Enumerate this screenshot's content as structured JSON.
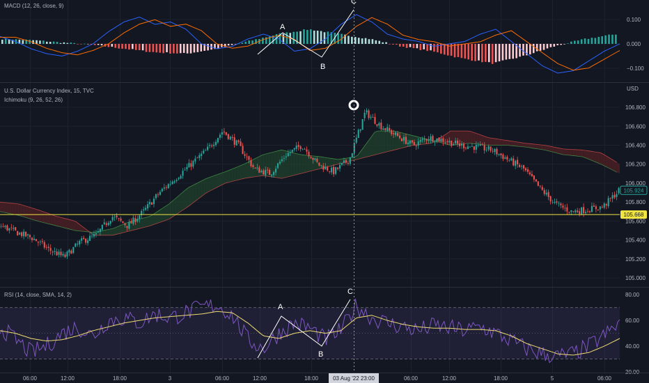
{
  "panes": {
    "macd": {
      "label": "MACD (12, 26, close, 9)"
    },
    "price": {
      "symbol_label": "U.S. Dollar Currency Index, 15, TVC",
      "indicator_label": "Ichimoku (9, 26, 52, 26)",
      "currency": "USD"
    },
    "rsi": {
      "label": "RSI (14, close, SMA, 14, 2)"
    }
  },
  "badges": {
    "last_price": "105.924",
    "hline_price": "105.668"
  },
  "crosshair_time": "03 Aug '22   23:00",
  "colors": {
    "bg": "#131722",
    "up": "#26a69a",
    "down": "#ef5350",
    "macd_line": "#2962ff",
    "signal_line": "#ff6d00",
    "rsi_line": "#7e57c2",
    "rsi_ma": "#f0dd73",
    "hline": "#f0e442",
    "cloud_bull": "#1f3d2c",
    "cloud_bear": "#4a1e24",
    "last_badge": "#26a69a",
    "hline_badge": "#f0e442"
  },
  "chart_data": [
    {
      "type": "bar",
      "title": "MACD (12, 26, close, 9)",
      "y_ticks": [
        "0.100",
        "0.000",
        "−0.100"
      ],
      "points": [
        "A",
        "B",
        "C"
      ],
      "histogram_sample": [
        0.02,
        0.015,
        0.005,
        -0.005,
        -0.02,
        -0.035,
        -0.04,
        -0.02,
        0.01,
        0.04,
        0.06,
        0.04,
        0.02,
        -0.01,
        -0.03,
        -0.06,
        -0.08,
        -0.05,
        -0.01,
        0.02,
        0.04
      ],
      "series": [
        {
          "name": "MACD",
          "type": "line"
        },
        {
          "name": "Signal",
          "type": "line"
        }
      ]
    },
    {
      "type": "line",
      "title": "U.S. Dollar Currency Index, 15, TVC",
      "ylabel": "USD",
      "y_ticks": [
        "106.800",
        "106.600",
        "106.400",
        "106.200",
        "106.000",
        "105.800",
        "105.600",
        "105.400",
        "105.200",
        "105.000"
      ],
      "ylim": [
        104.92,
        107.05
      ],
      "x_ticks": [
        "06:00",
        "12:00",
        "18:00",
        "3",
        "06:00",
        "12:00",
        "18:00",
        "06:00",
        "12:00",
        "18:00",
        "5",
        "06:00"
      ],
      "horizontal_line": 105.668,
      "last_price": 105.924,
      "close_path": [
        105.55,
        105.48,
        105.42,
        105.3,
        105.22,
        105.38,
        105.45,
        105.65,
        105.55,
        105.7,
        105.9,
        106.05,
        106.2,
        106.35,
        106.55,
        106.4,
        106.15,
        106.1,
        106.3,
        106.4,
        106.2,
        106.12,
        106.25,
        106.75,
        106.6,
        106.5,
        106.4,
        106.48,
        106.45,
        106.4,
        106.38,
        106.35,
        106.25,
        106.15,
        105.95,
        105.78,
        105.7,
        105.72,
        105.75,
        105.92
      ]
    },
    {
      "type": "line",
      "title": "RSI (14, close, SMA, 14, 2)",
      "y_ticks": [
        "80.00",
        "60.00",
        "40.00",
        "20.00"
      ],
      "ylim": [
        20,
        85
      ],
      "bands": [
        30,
        70
      ],
      "points": [
        "A",
        "B",
        "C"
      ],
      "series": [
        {
          "name": "RSI"
        },
        {
          "name": "MA"
        }
      ]
    }
  ]
}
